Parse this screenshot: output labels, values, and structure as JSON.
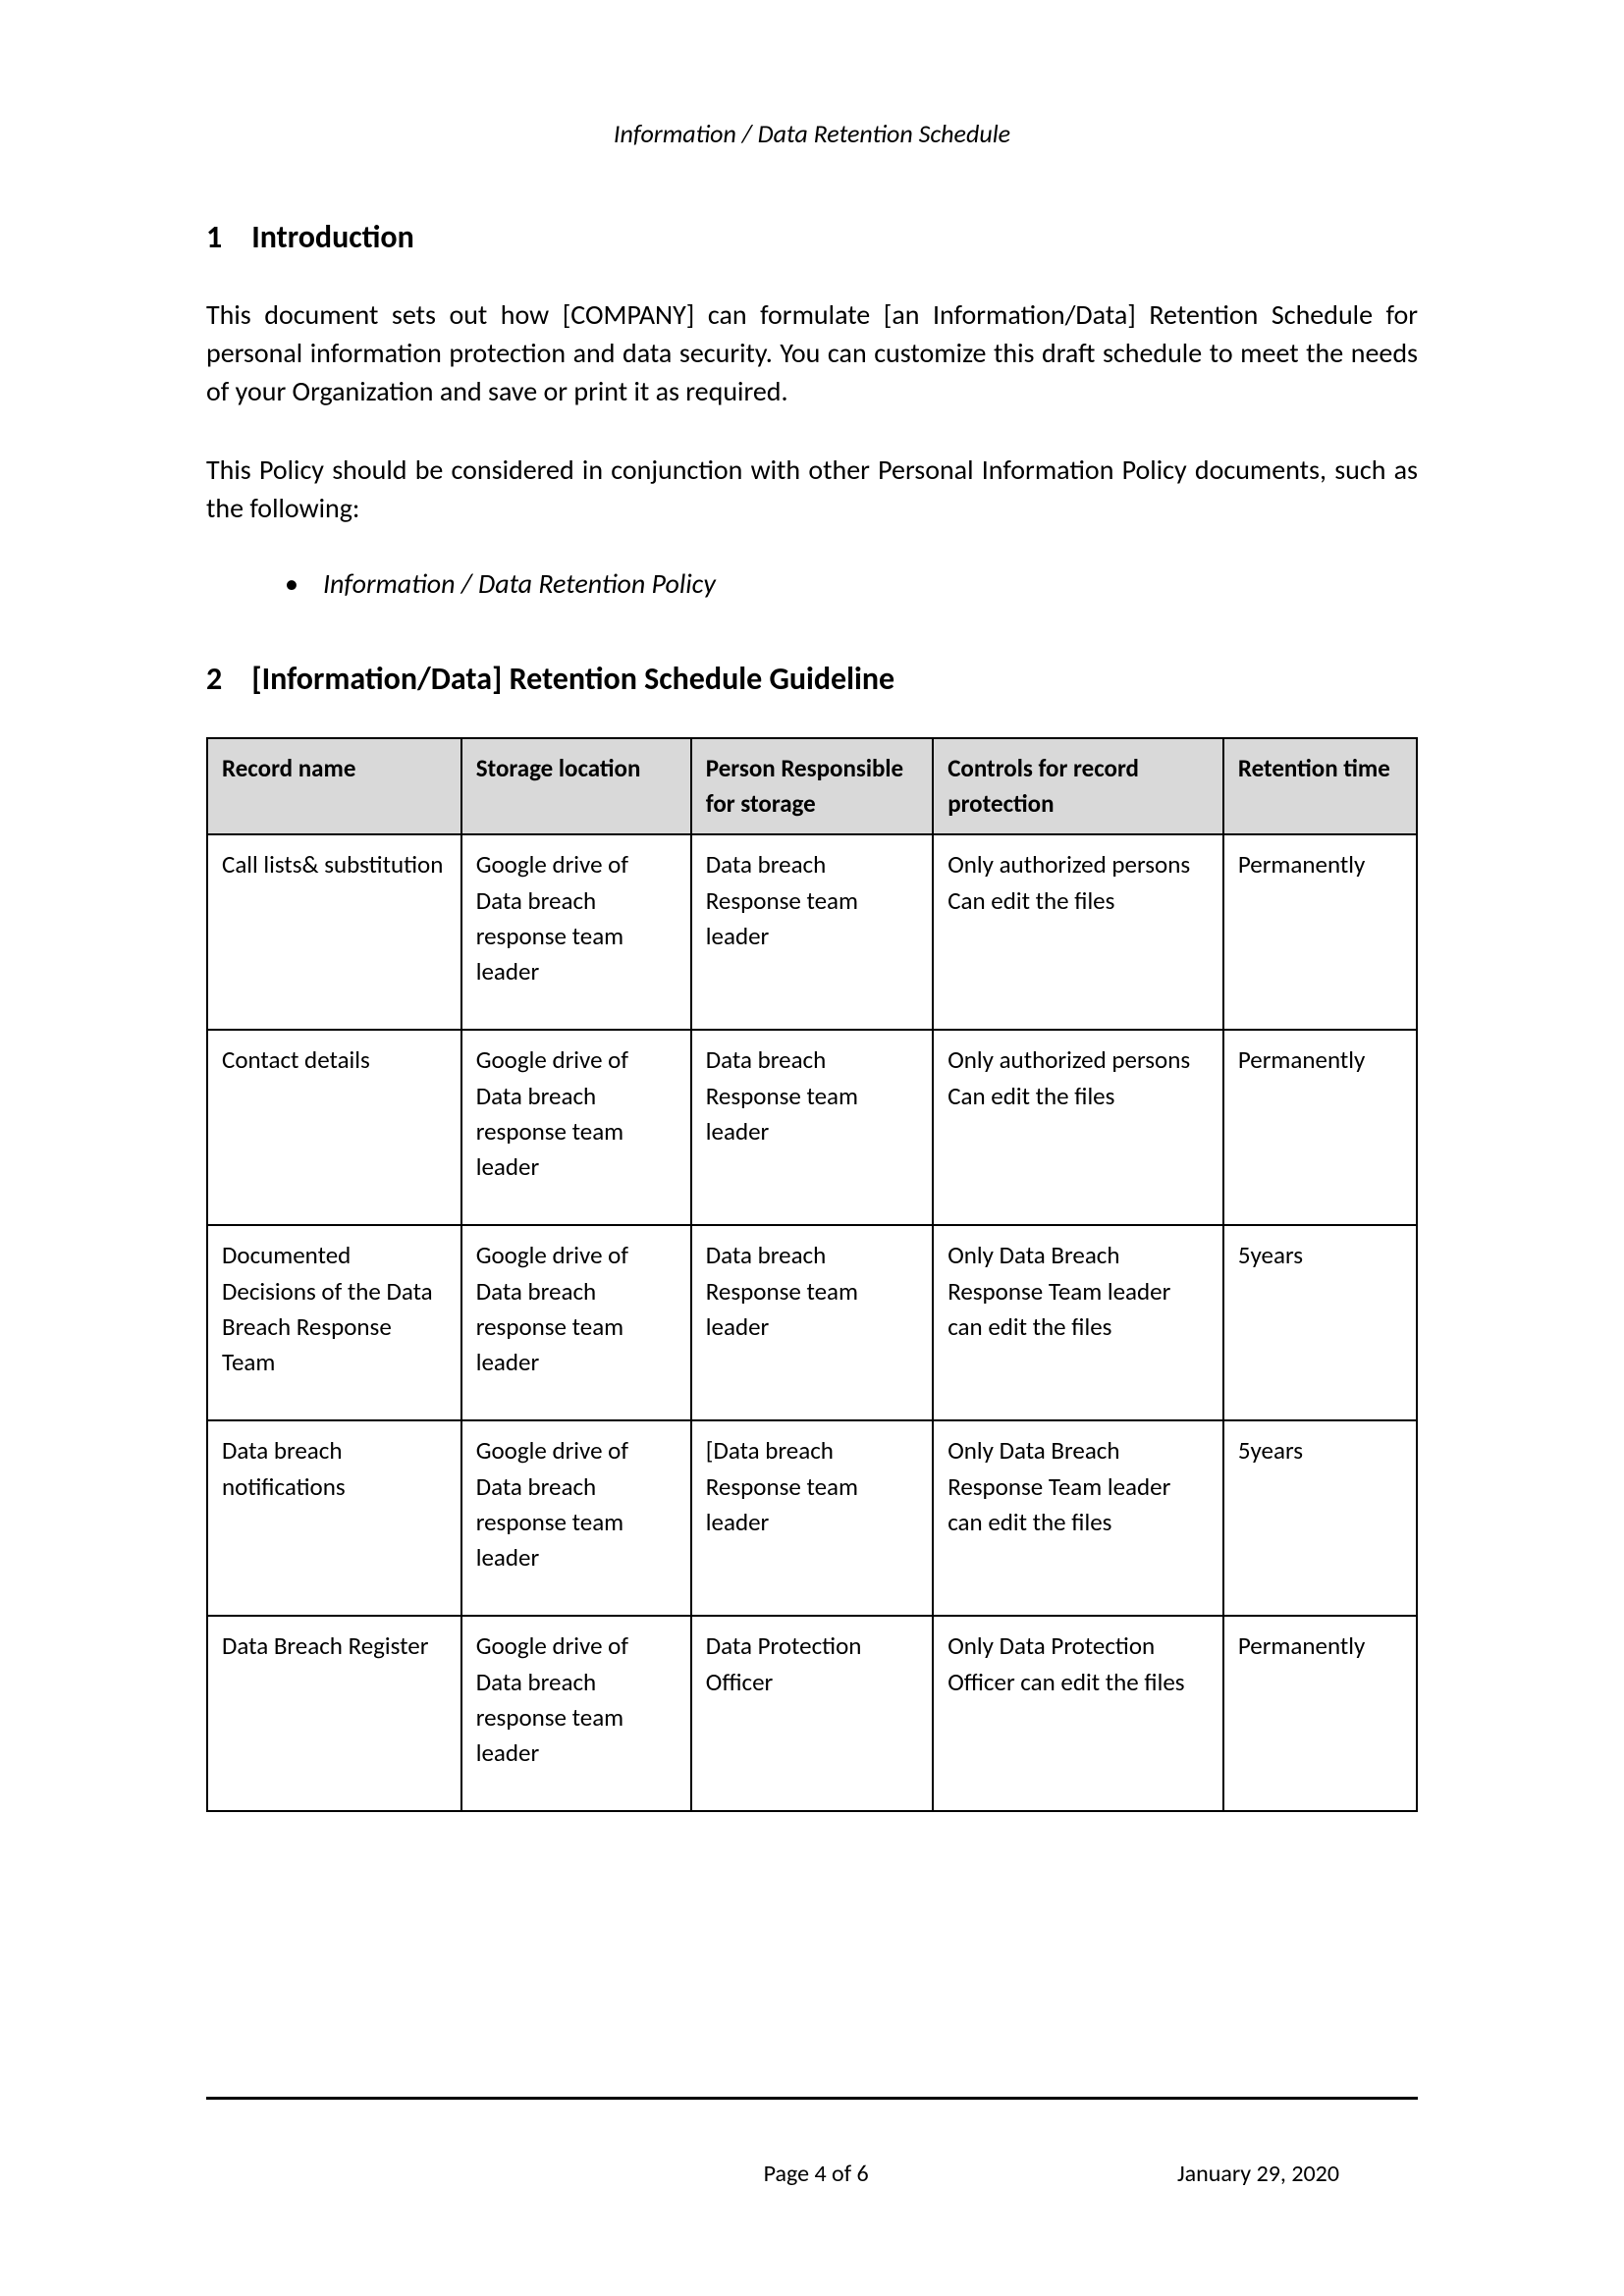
{
  "header": {
    "title": "Information / Data Retention Schedule"
  },
  "section1": {
    "num": "1",
    "title": "Introduction",
    "para1": "This document sets out how [COMPANY] can formulate [an Information/Data] Retention Schedule for personal information protection and data security. You can customize this draft schedule to meet the needs of your Organization and save or print it as required.",
    "para2": "This Policy should be considered in conjunction with other Personal Information Policy documents, such as the following:",
    "bullets": [
      "Information / Data Retention Policy"
    ]
  },
  "section2": {
    "num": "2",
    "title": "[Information/Data] Retention Schedule Guideline"
  },
  "table": {
    "headers": [
      "Record name",
      "Storage location",
      "Person Responsible for storage",
      "Controls for record protection",
      "Retention time"
    ],
    "rows": [
      {
        "record": "Call lists& substitution",
        "storage": "Google drive of Data breach response team leader",
        "person": "Data breach Response team leader",
        "controls": "Only authorized persons\nCan edit the files",
        "retention": "Permanently"
      },
      {
        "record": "Contact details",
        "storage": "Google drive of Data breach response team leader",
        "person": "Data breach Response team leader",
        "controls": "Only authorized persons\nCan edit the files",
        "retention": "Permanently"
      },
      {
        "record": "Documented Decisions of the Data Breach Response Team",
        "storage": "Google drive of Data breach response team leader",
        "person": "Data breach Response team leader",
        "controls": "Only Data Breach Response Team leader can edit the files",
        "retention": "5years"
      },
      {
        "record": "Data breach notifications",
        "storage": "Google drive of Data breach response team leader",
        "person": "[Data breach Response team leader",
        "controls": "Only Data Breach Response Team leader can edit the files",
        "retention": "5years"
      },
      {
        "record": "Data Breach Register",
        "storage": "Google drive of Data breach response team leader",
        "person": "Data Protection Officer",
        "controls": "Only Data Protection Officer can edit the files",
        "retention": "Permanently"
      }
    ]
  },
  "footer": {
    "page": "Page 4 of 6",
    "date": "January 29, 2020"
  }
}
